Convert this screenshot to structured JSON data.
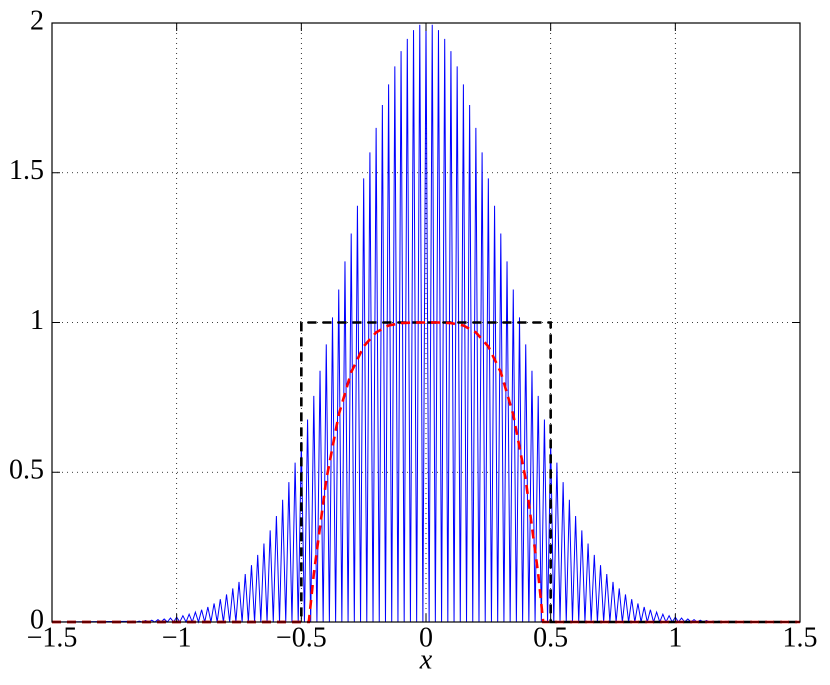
{
  "chart_data": {
    "type": "line",
    "xlabel": "x",
    "xlim": [
      -1.5,
      1.5
    ],
    "xticks": [
      {
        "value": -1.5,
        "label": "−1.5"
      },
      {
        "value": -1,
        "label": "−1"
      },
      {
        "value": -0.5,
        "label": "−0.5"
      },
      0,
      0.5,
      1,
      1.5
    ],
    "ylim": [
      0,
      2
    ],
    "yticks": [
      0,
      0.5,
      1,
      1.5,
      2
    ],
    "grid": true,
    "series": [
      {
        "color": "#0000ff",
        "linestyle": "solid",
        "x": [
          -1.5,
          -1.2,
          -1.1875,
          -1.175,
          -1.1625,
          -1.15,
          -1.1375,
          -1.125,
          -1.1125,
          -1.1,
          -1.0875,
          -1.075,
          -1.0625,
          -1.05,
          -1.0375,
          -1.025,
          -1.0125,
          -1,
          -0.9875,
          -0.975,
          -0.9625,
          -0.95,
          -0.9375,
          -0.925,
          -0.9125,
          -0.9,
          -0.8875,
          -0.875,
          -0.8625,
          -0.85,
          -0.8375,
          -0.825,
          -0.8125,
          -0.8,
          -0.7875,
          -0.775,
          -0.7625,
          -0.75,
          -0.7375,
          -0.725,
          -0.7125,
          -0.7,
          -0.6875,
          -0.675,
          -0.6625,
          -0.65,
          -0.6375,
          -0.625,
          -0.6125,
          -0.6,
          -0.5875,
          -0.575,
          -0.5625,
          -0.55,
          -0.5375,
          -0.525,
          -0.5125,
          -0.5,
          -0.4875,
          -0.475,
          -0.4625,
          -0.45,
          -0.4375,
          -0.425,
          -0.4125,
          -0.4,
          -0.3875,
          -0.375,
          -0.3625,
          -0.35,
          -0.3375,
          -0.325,
          -0.3125,
          -0.3,
          -0.2875,
          -0.275,
          -0.2625,
          -0.25,
          -0.2375,
          -0.225,
          -0.2125,
          -0.2,
          -0.1875,
          -0.175,
          -0.1625,
          -0.15,
          -0.1375,
          -0.125,
          -0.1125,
          -0.1,
          -0.0875,
          -0.075,
          -0.0625,
          -0.05,
          -0.0375,
          -0.025,
          -0.0125,
          0,
          0.0125,
          0.025,
          0.0375,
          0.05,
          0.0625,
          0.075,
          0.0875,
          0.1,
          0.1125,
          0.125,
          0.1375,
          0.15,
          0.1625,
          0.175,
          0.1875,
          0.2,
          0.2125,
          0.225,
          0.2375,
          0.25,
          0.2625,
          0.275,
          0.2875,
          0.3,
          0.3125,
          0.325,
          0.3375,
          0.35,
          0.3625,
          0.375,
          0.3875,
          0.4,
          0.4125,
          0.425,
          0.4375,
          0.45,
          0.4625,
          0.475,
          0.4875,
          0.5,
          0.5125,
          0.525,
          0.5375,
          0.55,
          0.5625,
          0.575,
          0.5875,
          0.6,
          0.6125,
          0.625,
          0.6375,
          0.65,
          0.6625,
          0.675,
          0.6875,
          0.7,
          0.7125,
          0.725,
          0.7375,
          0.75,
          0.7625,
          0.775,
          0.7875,
          0.8,
          0.8125,
          0.825,
          0.8375,
          0.85,
          0.8625,
          0.875,
          0.8875,
          0.9,
          0.9125,
          0.925,
          0.9375,
          0.95,
          0.9625,
          0.975,
          0.9875,
          1,
          1.0125,
          1.025,
          1.0375,
          1.05,
          1.0625,
          1.075,
          1.0875,
          1.1,
          1.1125,
          1.125,
          1.1375,
          1.15,
          1.1625,
          1.175,
          1.1875,
          1.2,
          1.5
        ],
        "values": [
          0,
          0.002,
          0,
          0.003,
          0,
          0.003,
          0,
          0.005,
          0,
          0.006,
          0,
          0.008,
          0,
          0.01,
          0,
          0.013,
          0,
          0.016,
          0,
          0.021,
          0,
          0.026,
          0,
          0.033,
          0,
          0.041,
          0,
          0.05,
          0,
          0.062,
          0,
          0.076,
          0,
          0.092,
          0,
          0.112,
          0,
          0.134,
          0,
          0.16,
          0,
          0.19,
          0,
          0.224,
          0,
          0.262,
          0,
          0.306,
          0,
          0.354,
          0,
          0.408,
          0,
          0.467,
          0,
          0.532,
          0,
          0.601,
          0,
          0.676,
          0,
          0.755,
          0,
          0.839,
          0,
          0.927,
          0,
          1.017,
          0,
          1.11,
          0,
          1.204,
          0,
          1.297,
          0,
          1.39,
          0,
          1.481,
          0,
          1.568,
          0,
          1.65,
          0,
          1.726,
          0,
          1.795,
          0,
          1.855,
          0,
          1.906,
          0,
          1.947,
          0,
          1.976,
          0,
          1.994,
          0,
          2,
          0,
          1.994,
          0,
          1.976,
          0,
          1.947,
          0,
          1.906,
          0,
          1.855,
          0,
          1.795,
          0,
          1.726,
          0,
          1.65,
          0,
          1.568,
          0,
          1.481,
          0,
          1.39,
          0,
          1.297,
          0,
          1.204,
          0,
          1.11,
          0,
          1.017,
          0,
          0.927,
          0,
          0.839,
          0,
          0.755,
          0,
          0.676,
          0,
          0.601,
          0,
          0.532,
          0,
          0.467,
          0,
          0.408,
          0,
          0.354,
          0,
          0.306,
          0,
          0.262,
          0,
          0.224,
          0,
          0.19,
          0,
          0.16,
          0,
          0.134,
          0,
          0.112,
          0,
          0.092,
          0,
          0.076,
          0,
          0.062,
          0,
          0.05,
          0,
          0.041,
          0,
          0.033,
          0,
          0.026,
          0,
          0.021,
          0,
          0.016,
          0,
          0.013,
          0,
          0.01,
          0,
          0.008,
          0,
          0.006,
          0,
          0.005,
          0,
          0.003,
          0,
          0.003,
          0,
          0.002,
          0
        ]
      },
      {
        "color": "#000000",
        "linestyle": "dashed",
        "x": [
          -1.5,
          -0.5,
          -0.5,
          0.5,
          0.5,
          1.5
        ],
        "values": [
          0,
          0,
          1,
          1,
          0,
          0
        ]
      },
      {
        "color": "#ff0000",
        "linestyle": "dashed",
        "x": [
          -1.5,
          -0.47,
          -0.45,
          -0.4,
          -0.35,
          -0.3,
          -0.25,
          -0.2,
          -0.15,
          -0.1,
          -0.05,
          0,
          0.05,
          0.1,
          0.15,
          0.2,
          0.25,
          0.3,
          0.35,
          0.4,
          0.45,
          0.47,
          1.5
        ],
        "values": [
          0,
          0,
          0.16,
          0.475,
          0.692,
          0.834,
          0.92,
          0.967,
          0.99,
          0.998,
          1,
          1,
          1,
          0.998,
          0.99,
          0.967,
          0.92,
          0.834,
          0.692,
          0.475,
          0.16,
          0,
          0
        ]
      }
    ]
  }
}
